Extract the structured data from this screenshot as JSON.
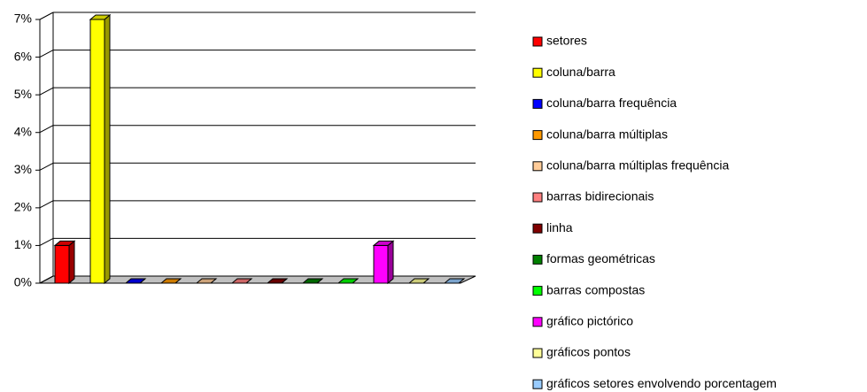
{
  "chart_data": {
    "type": "bar",
    "categories": [
      null
    ],
    "series": [
      {
        "name": "setores",
        "color": "#ff0000",
        "values": [
          1
        ]
      },
      {
        "name": "coluna/barra",
        "color": "#ffff00",
        "values": [
          7
        ]
      },
      {
        "name": "coluna/barra frequência",
        "color": "#0000ff",
        "values": [
          0
        ]
      },
      {
        "name": "coluna/barra múltiplas",
        "color": "#ff9900",
        "values": [
          0
        ]
      },
      {
        "name": "coluna/barra múltiplas frequência",
        "color": "#ffcc99",
        "values": [
          0
        ]
      },
      {
        "name": "barras bidirecionais",
        "color": "#ff8080",
        "values": [
          0
        ]
      },
      {
        "name": "linha",
        "color": "#800000",
        "values": [
          0
        ]
      },
      {
        "name": "formas geométricas",
        "color": "#008000",
        "values": [
          0
        ]
      },
      {
        "name": "barras compostas",
        "color": "#00ff00",
        "values": [
          0
        ]
      },
      {
        "name": "gráfico pictórico",
        "color": "#ff00ff",
        "values": [
          1
        ]
      },
      {
        "name": "gráficos pontos",
        "color": "#ffff99",
        "values": [
          0
        ]
      },
      {
        "name": "gráficos setores envolvendo porcentagem",
        "color": "#99ccff",
        "values": [
          0
        ]
      }
    ],
    "ylim": [
      0,
      7
    ],
    "yticks": [
      {
        "value": 0,
        "label": "0%"
      },
      {
        "value": 1,
        "label": "1%"
      },
      {
        "value": 2,
        "label": "2%"
      },
      {
        "value": 3,
        "label": "3%"
      },
      {
        "value": 4,
        "label": "4%"
      },
      {
        "value": 5,
        "label": "5%"
      },
      {
        "value": 6,
        "label": "6%"
      },
      {
        "value": 7,
        "label": "7%"
      }
    ],
    "grid": true,
    "legend": "right"
  }
}
